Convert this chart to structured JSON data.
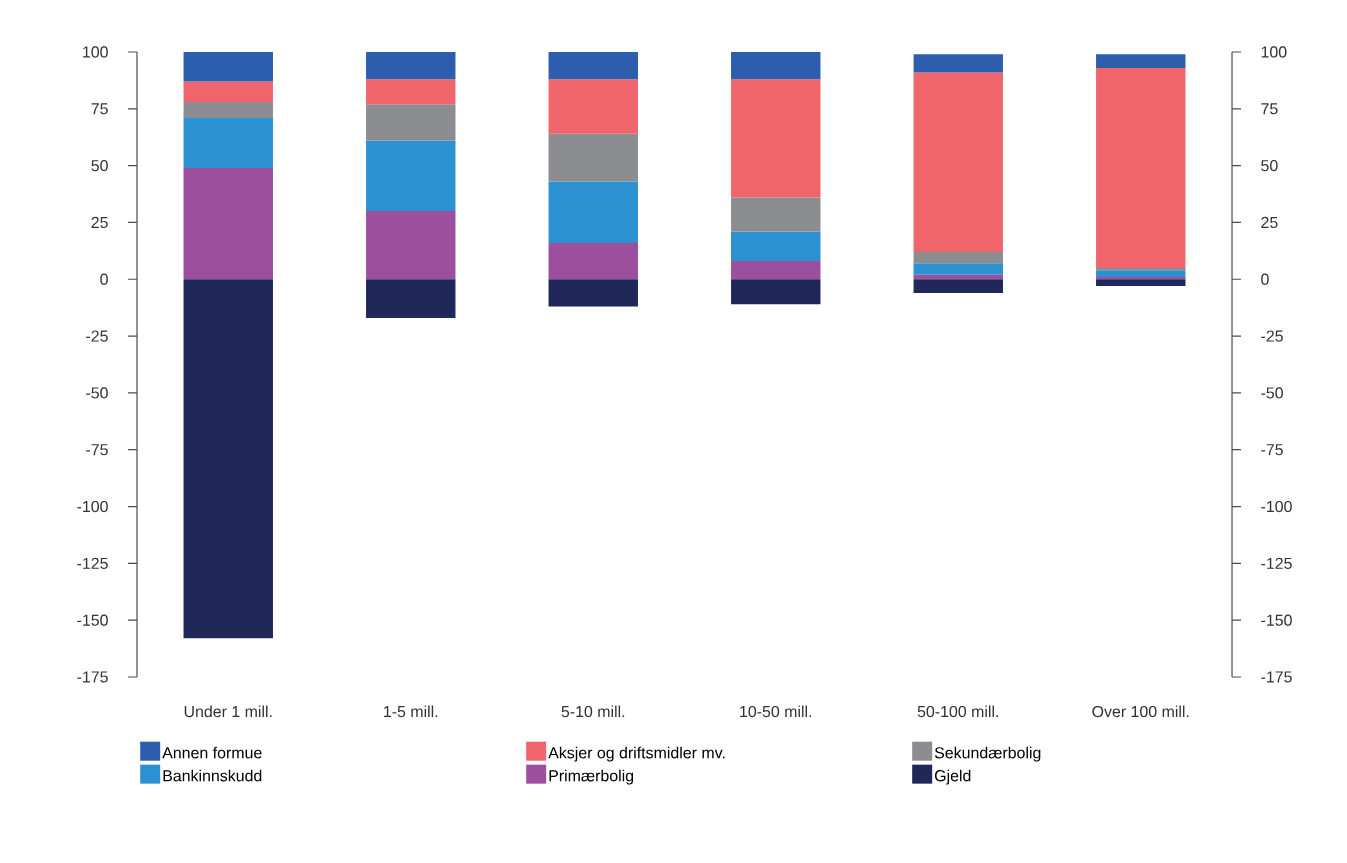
{
  "chart_data": {
    "type": "bar",
    "stacked": true,
    "categories": [
      "Under 1 mill.",
      "1-5 mill.",
      "5-10 mill.",
      "10-50 mill.",
      "50-100 mill.",
      "Over 100 mill."
    ],
    "series": [
      {
        "name": "Primærbolig",
        "color": "#9c4f9c",
        "values": [
          49,
          30,
          16,
          8,
          2,
          1
        ]
      },
      {
        "name": "Bankinnskudd",
        "color": "#2c91d0",
        "values": [
          22,
          31,
          27,
          13,
          5,
          3
        ]
      },
      {
        "name": "Sekundærbolig",
        "color": "#8c8d91",
        "values": [
          7,
          16,
          21,
          15,
          5,
          1
        ]
      },
      {
        "name": "Aksjer og driftsmidler mv.",
        "color": "#f0646c",
        "values": [
          9,
          11,
          24,
          52,
          79,
          88
        ]
      },
      {
        "name": "Annen formue",
        "color": "#2d5ead",
        "values": [
          13,
          12,
          12,
          12,
          8,
          6
        ]
      },
      {
        "name": "Gjeld",
        "color": "#1f2859",
        "values": [
          -158,
          -17,
          -12,
          -11,
          -6,
          -3
        ]
      }
    ],
    "ylim": [
      -175,
      100
    ],
    "yticks": [
      -175,
      -150,
      -125,
      -100,
      -75,
      -50,
      -25,
      0,
      25,
      50,
      75,
      100
    ],
    "y2lim": [
      -175,
      100
    ],
    "y2ticks": [
      -175,
      -150,
      -125,
      -100,
      -75,
      -50,
      -25,
      0,
      25,
      50,
      75,
      100
    ],
    "legend": "bottom"
  }
}
